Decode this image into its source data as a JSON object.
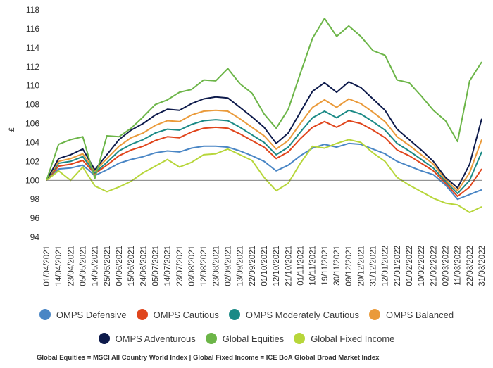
{
  "chart_data": {
    "type": "line",
    "title": "",
    "ylabel": "£",
    "xlabel": "",
    "ylim": [
      94,
      118
    ],
    "yticks": [
      94,
      96,
      98,
      100,
      102,
      104,
      106,
      108,
      110,
      112,
      114,
      116,
      118
    ],
    "x_tick_labels": [
      "01/04/2021",
      "14/04/2021",
      "23/04/2021",
      "05/05/2021",
      "14/05/2021",
      "25/05/2021",
      "04/06/2021",
      "15/06/2021",
      "24/06/2021",
      "05/07/2021",
      "14/07/2021",
      "23/07/2021",
      "03/08/2021",
      "12/08/2021",
      "23/08/2021",
      "02/09/2021",
      "13/09/2021",
      "22/09/2021",
      "01/10/2021",
      "12/10/2021",
      "21/10/2021",
      "01/11/2021",
      "10/11/2021",
      "19/11/2021",
      "30/11/2021",
      "09/12/2021",
      "20/12/2021",
      "31/12/2021",
      "12/01/2022",
      "21/01/2022",
      "01/02/2022",
      "10/02/2022",
      "21/02/2022",
      "02/03/2022",
      "11/03/2022",
      "22/03/2022",
      "31/03/2022"
    ],
    "grid": false,
    "legend_position": "bottom",
    "x": [
      "01/04/2021",
      "14/04/2021",
      "23/04/2021",
      "05/05/2021",
      "14/05/2021",
      "25/05/2021",
      "04/06/2021",
      "15/06/2021",
      "24/06/2021",
      "05/07/2021",
      "14/07/2021",
      "23/07/2021",
      "03/08/2021",
      "12/08/2021",
      "23/08/2021",
      "02/09/2021",
      "13/09/2021",
      "22/09/2021",
      "01/10/2021",
      "12/10/2021",
      "21/10/2021",
      "01/11/2021",
      "10/11/2021",
      "19/11/2021",
      "30/11/2021",
      "09/12/2021",
      "20/12/2021",
      "31/12/2021",
      "12/01/2022",
      "21/01/2022",
      "01/02/2022",
      "10/02/2022",
      "21/02/2022",
      "02/03/2022",
      "11/03/2022",
      "22/03/2022",
      "31/03/2022"
    ],
    "series": [
      {
        "name": "OMPS Defensive",
        "color": "#4a86c5",
        "values": [
          100.0,
          101.2,
          101.3,
          101.6,
          100.5,
          101.1,
          101.8,
          102.2,
          102.5,
          102.9,
          103.1,
          103.0,
          103.4,
          103.6,
          103.6,
          103.5,
          103.1,
          102.6,
          102.0,
          101.0,
          101.6,
          102.6,
          103.4,
          103.8,
          103.5,
          103.9,
          103.8,
          103.3,
          102.8,
          102.0,
          101.5,
          101.0,
          100.6,
          99.5,
          98.0,
          98.5,
          99.0
        ]
      },
      {
        "name": "OMPS Cautious",
        "color": "#e0451c",
        "values": [
          100.0,
          101.5,
          101.7,
          102.1,
          100.7,
          101.6,
          102.6,
          103.2,
          103.6,
          104.2,
          104.6,
          104.5,
          105.1,
          105.5,
          105.6,
          105.5,
          104.9,
          104.2,
          103.5,
          102.3,
          103.0,
          104.4,
          105.6,
          106.2,
          105.6,
          106.3,
          106.0,
          105.3,
          104.5,
          103.2,
          102.6,
          101.8,
          101.0,
          99.7,
          98.3,
          99.3,
          101.2
        ]
      },
      {
        "name": "OMPS Moderately Cautious",
        "color": "#1b8a86",
        "values": [
          100.0,
          101.8,
          102.0,
          102.5,
          100.8,
          101.9,
          103.1,
          103.8,
          104.3,
          105.0,
          105.4,
          105.3,
          105.9,
          106.3,
          106.4,
          106.3,
          105.6,
          104.8,
          104.0,
          102.7,
          103.5,
          105.1,
          106.6,
          107.3,
          106.6,
          107.4,
          107.0,
          106.2,
          105.3,
          103.9,
          103.1,
          102.2,
          101.3,
          99.9,
          98.6,
          100.0,
          103.0
        ]
      },
      {
        "name": "OMPS Balanced",
        "color": "#ea9a3a",
        "values": [
          100.0,
          102.0,
          102.3,
          102.8,
          101.0,
          102.3,
          103.6,
          104.5,
          105.0,
          105.8,
          106.3,
          106.2,
          106.9,
          107.3,
          107.4,
          107.3,
          106.5,
          105.6,
          104.7,
          103.3,
          104.2,
          106.0,
          107.7,
          108.5,
          107.7,
          108.6,
          108.1,
          107.2,
          106.2,
          104.6,
          103.7,
          102.7,
          101.7,
          100.1,
          98.9,
          100.8,
          104.3
        ]
      },
      {
        "name": "OMPS Adventurous",
        "color": "#0d1a4b",
        "values": [
          100.0,
          102.3,
          102.7,
          103.3,
          101.1,
          102.7,
          104.3,
          105.3,
          106.0,
          106.9,
          107.5,
          107.4,
          108.1,
          108.6,
          108.8,
          108.7,
          107.7,
          106.7,
          105.6,
          103.9,
          105.0,
          107.2,
          109.4,
          110.3,
          109.3,
          110.4,
          109.8,
          108.6,
          107.4,
          105.4,
          104.3,
          103.2,
          102.0,
          100.3,
          99.2,
          101.7,
          106.5
        ]
      },
      {
        "name": "Global Equities",
        "color": "#6cb548",
        "values": [
          100.0,
          103.8,
          104.3,
          104.6,
          100.2,
          104.7,
          104.6,
          105.5,
          106.7,
          108.0,
          108.5,
          109.3,
          109.6,
          110.6,
          110.5,
          111.8,
          110.2,
          109.2,
          107.0,
          105.5,
          107.5,
          111.3,
          115.0,
          117.1,
          115.2,
          116.3,
          115.2,
          113.7,
          113.2,
          110.6,
          110.3,
          108.9,
          107.4,
          106.3,
          104.1,
          110.5,
          112.5
        ]
      },
      {
        "name": "Global Fixed Income",
        "color": "#b7d63a",
        "values": [
          100.0,
          101.0,
          100.0,
          101.4,
          99.4,
          98.8,
          99.3,
          99.9,
          100.8,
          101.5,
          102.2,
          101.4,
          101.9,
          102.7,
          102.8,
          103.3,
          102.7,
          102.1,
          100.3,
          98.9,
          99.7,
          101.8,
          103.6,
          103.4,
          103.9,
          104.3,
          104.0,
          102.9,
          102.0,
          100.3,
          99.5,
          98.8,
          98.1,
          97.6,
          97.4,
          96.6,
          97.2
        ]
      }
    ]
  },
  "legend": {
    "row1": [
      "OMPS Defensive",
      "OMPS Cautious",
      "OMPS Moderately Cautious",
      "OMPS Balanced"
    ],
    "row2": [
      "OMPS Adventurous",
      "Global Equities",
      "Global Fixed Income"
    ]
  },
  "footnote": "Global Equities = MSCI All Country World Index | Global Fixed Income = ICE BoA Global Broad Market Index",
  "colors": {
    "axis": "#555555",
    "text": "#333333"
  }
}
